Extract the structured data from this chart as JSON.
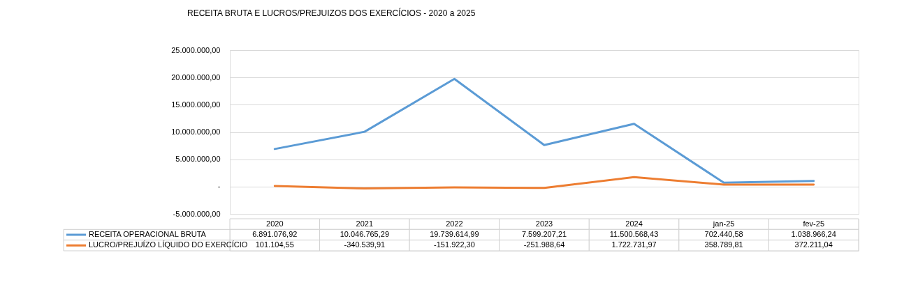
{
  "chart_data": {
    "type": "line",
    "title": "RECEITA BRUTA E LUCROS/PREJUIZOS DOS EXERCÍCIOS - 2020 a 2025",
    "categories": [
      "2020",
      "2021",
      "2022",
      "2023",
      "2024",
      "jan-25",
      "fev-25"
    ],
    "series": [
      {
        "name": "RECEITA OPERACIONAL BRUTA",
        "color": "#5b9bd5",
        "values": [
          6891076.92,
          10046765.29,
          19739614.99,
          7599207.21,
          11500568.43,
          702440.58,
          1038966.24
        ],
        "value_labels": [
          "6.891.076,92",
          "10.046.765,29",
          "19.739.614,99",
          "7.599.207,21",
          "11.500.568,43",
          "702.440,58",
          "1.038.966,24"
        ]
      },
      {
        "name": "LUCRO/PREJUÍZO LÍQUIDO DO EXERCÍCIO",
        "color": "#ed7d31",
        "values": [
          101104.55,
          -340539.91,
          -151922.3,
          -251988.64,
          1722731.97,
          358789.81,
          372211.04
        ],
        "value_labels": [
          "101.104,55",
          "-340.539,91",
          "-151.922,30",
          "-251.988,64",
          "1.722.731,97",
          "358.789,81",
          "372.211,04"
        ]
      }
    ],
    "ylim": [
      -5000000,
      25000000
    ],
    "yticks": [
      {
        "value": -5000000,
        "label": "-5.000.000,00"
      },
      {
        "value": 0,
        "label": "-"
      },
      {
        "value": 5000000,
        "label": "5.000.000,00"
      },
      {
        "value": 10000000,
        "label": "10.000.000,00"
      },
      {
        "value": 15000000,
        "label": "15.000.000,00"
      },
      {
        "value": 20000000,
        "label": "20.000.000,00"
      },
      {
        "value": 25000000,
        "label": "25.000.000,00"
      }
    ],
    "grid": "y",
    "legend": "bottom",
    "marker": "none",
    "line_style": "solid"
  }
}
